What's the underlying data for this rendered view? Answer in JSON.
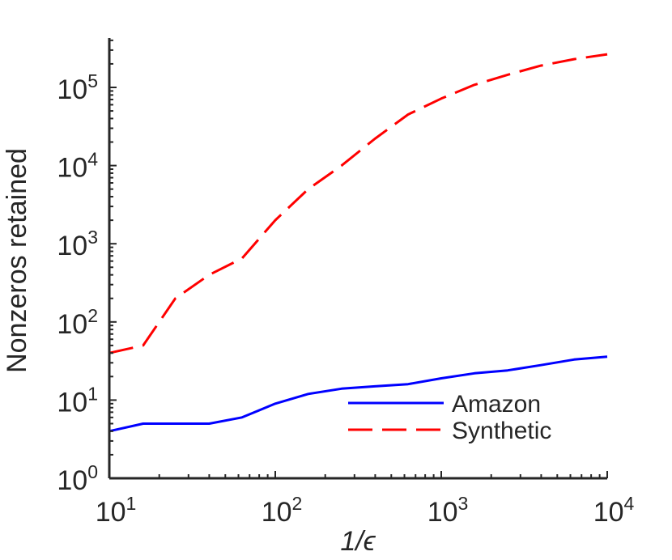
{
  "chart_data": {
    "type": "line",
    "xlabel": "1/ϵ",
    "ylabel": "Nonzeros retained",
    "xscale": "log",
    "yscale": "log",
    "xlim": [
      10,
      10000
    ],
    "ylim": [
      1,
      500000
    ],
    "grid": false,
    "legend_position": "bottom-right",
    "x_ticks": [
      {
        "value": 10,
        "base": "10",
        "exp": "1"
      },
      {
        "value": 100,
        "base": "10",
        "exp": "2"
      },
      {
        "value": 1000,
        "base": "10",
        "exp": "3"
      },
      {
        "value": 10000,
        "base": "10",
        "exp": "4"
      }
    ],
    "y_ticks": [
      {
        "value": 1,
        "base": "10",
        "exp": "0"
      },
      {
        "value": 10,
        "base": "10",
        "exp": "1"
      },
      {
        "value": 100,
        "base": "10",
        "exp": "2"
      },
      {
        "value": 1000,
        "base": "10",
        "exp": "3"
      },
      {
        "value": 10000,
        "base": "10",
        "exp": "4"
      },
      {
        "value": 100000,
        "base": "10",
        "exp": "5"
      }
    ],
    "series": [
      {
        "name": "Amazon",
        "color": "#0000ff",
        "dash": "solid",
        "x": [
          10,
          16,
          25,
          40,
          63,
          100,
          158,
          251,
          398,
          631,
          1000,
          1585,
          2512,
          3981,
          6310,
          10000
        ],
        "y": [
          4,
          5,
          5,
          5,
          6,
          9,
          12,
          14,
          15,
          16,
          19,
          22,
          24,
          28,
          33,
          36
        ]
      },
      {
        "name": "Synthetic",
        "color": "#ff0000",
        "dash": "dashed",
        "x": [
          10,
          16,
          25,
          40,
          63,
          100,
          158,
          251,
          398,
          631,
          1000,
          1585,
          2512,
          3981,
          6310,
          10000
        ],
        "y": [
          40,
          50,
          200,
          400,
          650,
          2000,
          5000,
          10000,
          22000,
          45000,
          72000,
          108000,
          145000,
          190000,
          230000,
          265000
        ]
      }
    ]
  }
}
